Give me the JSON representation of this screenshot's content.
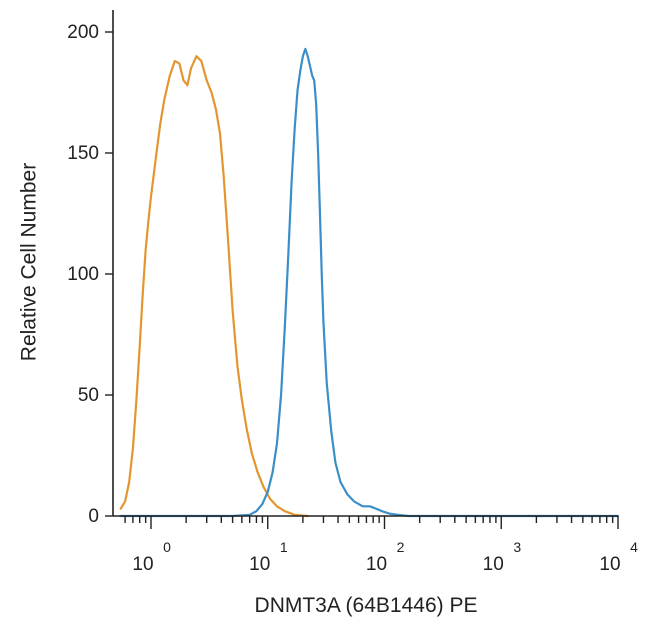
{
  "chart_data": {
    "type": "line",
    "title": "",
    "xlabel": "DNMT3A (64B1446) PE",
    "ylabel": "Relative Cell Number",
    "x_scale": "log",
    "xlim": [
      0.55,
      10000
    ],
    "ylim": [
      0,
      210
    ],
    "grid": false,
    "legend": "none",
    "y_ticks": [
      0,
      50,
      100,
      150,
      200
    ],
    "x_ticks": [
      {
        "value": 1,
        "base": "10",
        "exp": "0"
      },
      {
        "value": 10,
        "base": "10",
        "exp": "1"
      },
      {
        "value": 100,
        "base": "10",
        "exp": "2"
      },
      {
        "value": 1000,
        "base": "10",
        "exp": "3"
      },
      {
        "value": 10000,
        "base": "10",
        "exp": "4"
      }
    ],
    "series": [
      {
        "color": "#e3962f",
        "points": [
          [
            0.55,
            3
          ],
          [
            0.6,
            6
          ],
          [
            0.65,
            14
          ],
          [
            0.7,
            28
          ],
          [
            0.75,
            48
          ],
          [
            0.8,
            70
          ],
          [
            0.85,
            92
          ],
          [
            0.9,
            110
          ],
          [
            0.95,
            122
          ],
          [
            1.0,
            132
          ],
          [
            1.1,
            148
          ],
          [
            1.2,
            162
          ],
          [
            1.3,
            172
          ],
          [
            1.45,
            182
          ],
          [
            1.6,
            188
          ],
          [
            1.75,
            187
          ],
          [
            1.9,
            180
          ],
          [
            2.05,
            178
          ],
          [
            2.2,
            185
          ],
          [
            2.45,
            190
          ],
          [
            2.7,
            188
          ],
          [
            3.0,
            180
          ],
          [
            3.3,
            175
          ],
          [
            3.6,
            168
          ],
          [
            3.9,
            158
          ],
          [
            4.2,
            140
          ],
          [
            4.6,
            112
          ],
          [
            5.0,
            85
          ],
          [
            5.5,
            62
          ],
          [
            6.0,
            48
          ],
          [
            6.6,
            36
          ],
          [
            7.3,
            26
          ],
          [
            8.2,
            18
          ],
          [
            9.2,
            12
          ],
          [
            10.5,
            7
          ],
          [
            12.0,
            4
          ],
          [
            14.0,
            2
          ],
          [
            17.0,
            0.5
          ],
          [
            22.0,
            0
          ]
        ]
      },
      {
        "color": "#3a8fc8",
        "points": [
          [
            0.55,
            0
          ],
          [
            5.0,
            0
          ],
          [
            7.0,
            0.5
          ],
          [
            8.0,
            2
          ],
          [
            9.0,
            5
          ],
          [
            10.0,
            10
          ],
          [
            11.0,
            18
          ],
          [
            12.0,
            30
          ],
          [
            13.0,
            50
          ],
          [
            14.0,
            78
          ],
          [
            15.0,
            108
          ],
          [
            16.0,
            138
          ],
          [
            17.0,
            160
          ],
          [
            18.0,
            176
          ],
          [
            19.0,
            184
          ],
          [
            20.0,
            190
          ],
          [
            21.0,
            193
          ],
          [
            22.0,
            190
          ],
          [
            23.0,
            186
          ],
          [
            24.0,
            182
          ],
          [
            25.0,
            180
          ],
          [
            26.0,
            170
          ],
          [
            27.0,
            150
          ],
          [
            28.0,
            125
          ],
          [
            29.0,
            100
          ],
          [
            30.0,
            80
          ],
          [
            32.0,
            55
          ],
          [
            35.0,
            35
          ],
          [
            38.0,
            22
          ],
          [
            42.0,
            14
          ],
          [
            48.0,
            9
          ],
          [
            55.0,
            6
          ],
          [
            65.0,
            4
          ],
          [
            75.0,
            4
          ],
          [
            85.0,
            3
          ],
          [
            95.0,
            2
          ],
          [
            110.0,
            1
          ],
          [
            130.0,
            0.5
          ],
          [
            160.0,
            0
          ],
          [
            10000,
            0
          ]
        ]
      }
    ]
  }
}
